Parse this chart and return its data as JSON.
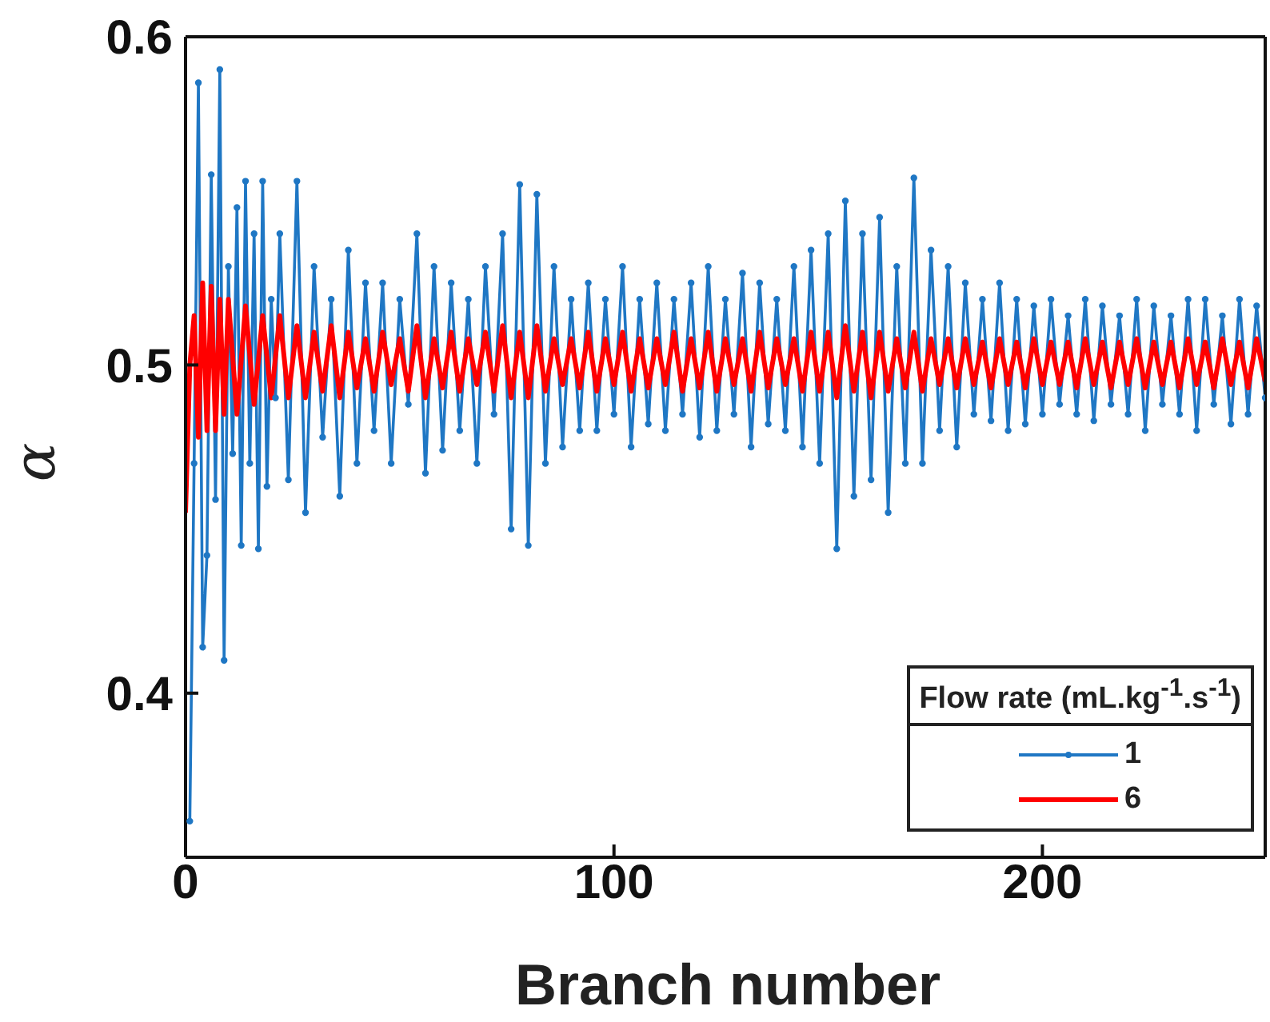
{
  "chart_data": {
    "type": "line",
    "xlabel": "Branch number",
    "ylabel": "α",
    "legend_title": "Flow rate (mL.kg$^{-1}$.s$^{-1}$)",
    "legend": "bottom right",
    "xlim": [
      0,
      252
    ],
    "xticks": [
      0,
      100,
      200
    ],
    "ylim": [
      0.35,
      0.6
    ],
    "yticks": [
      0.4,
      0.5,
      0.6
    ],
    "series": [
      {
        "name": "1",
        "color": "#1f77c4",
        "marker": "circle",
        "x": [
          1,
          2,
          3,
          4,
          5,
          6,
          7,
          8,
          9,
          10,
          11,
          12,
          13,
          14,
          15,
          16,
          17,
          18,
          19,
          20,
          21,
          22,
          24,
          26,
          28,
          30,
          32,
          34,
          36,
          38,
          40,
          42,
          44,
          46,
          48,
          50,
          52,
          54,
          56,
          58,
          60,
          62,
          64,
          66,
          68,
          70,
          72,
          74,
          76,
          78,
          80,
          82,
          84,
          86,
          88,
          90,
          92,
          94,
          96,
          98,
          100,
          102,
          104,
          106,
          108,
          110,
          112,
          114,
          116,
          118,
          120,
          122,
          124,
          126,
          128,
          130,
          132,
          134,
          136,
          138,
          140,
          142,
          144,
          146,
          148,
          150,
          152,
          154,
          156,
          158,
          160,
          162,
          164,
          166,
          168,
          170,
          172,
          174,
          176,
          178,
          180,
          182,
          184,
          186,
          188,
          190,
          192,
          194,
          196,
          198,
          200,
          202,
          204,
          206,
          208,
          210,
          212,
          214,
          216,
          218,
          220,
          222,
          224,
          226,
          228,
          230,
          232,
          234,
          236,
          238,
          240,
          242,
          244,
          246,
          248,
          250,
          252
        ],
        "values": [
          0.361,
          0.47,
          0.586,
          0.414,
          0.442,
          0.558,
          0.459,
          0.59,
          0.41,
          0.53,
          0.473,
          0.548,
          0.445,
          0.556,
          0.47,
          0.54,
          0.444,
          0.556,
          0.463,
          0.52,
          0.49,
          0.54,
          0.465,
          0.556,
          0.455,
          0.53,
          0.478,
          0.52,
          0.46,
          0.535,
          0.47,
          0.525,
          0.48,
          0.525,
          0.47,
          0.52,
          0.488,
          0.54,
          0.467,
          0.53,
          0.474,
          0.525,
          0.48,
          0.52,
          0.47,
          0.53,
          0.485,
          0.54,
          0.45,
          0.555,
          0.445,
          0.552,
          0.47,
          0.53,
          0.475,
          0.52,
          0.48,
          0.525,
          0.48,
          0.52,
          0.485,
          0.53,
          0.475,
          0.52,
          0.482,
          0.525,
          0.48,
          0.52,
          0.485,
          0.525,
          0.478,
          0.53,
          0.48,
          0.52,
          0.485,
          0.528,
          0.475,
          0.525,
          0.482,
          0.52,
          0.48,
          0.53,
          0.475,
          0.535,
          0.47,
          0.54,
          0.444,
          0.55,
          0.46,
          0.54,
          0.465,
          0.545,
          0.455,
          0.53,
          0.47,
          0.557,
          0.47,
          0.535,
          0.48,
          0.53,
          0.475,
          0.525,
          0.485,
          0.52,
          0.483,
          0.525,
          0.48,
          0.52,
          0.482,
          0.518,
          0.485,
          0.52,
          0.488,
          0.515,
          0.485,
          0.52,
          0.483,
          0.518,
          0.488,
          0.515,
          0.485,
          0.52,
          0.48,
          0.518,
          0.488,
          0.515,
          0.485,
          0.52,
          0.48,
          0.52,
          0.488,
          0.515,
          0.482,
          0.52,
          0.485,
          0.518,
          0.49
        ]
      },
      {
        "name": "6",
        "color": "#ff0000",
        "marker": "none",
        "x": [
          0,
          1,
          2,
          3,
          4,
          5,
          6,
          7,
          8,
          9,
          10,
          12,
          14,
          16,
          18,
          20,
          22,
          24,
          26,
          28,
          30,
          32,
          34,
          36,
          38,
          40,
          42,
          44,
          46,
          48,
          50,
          52,
          54,
          56,
          58,
          60,
          62,
          64,
          66,
          68,
          70,
          72,
          74,
          76,
          78,
          80,
          82,
          84,
          86,
          88,
          90,
          92,
          94,
          96,
          98,
          100,
          102,
          104,
          106,
          108,
          110,
          112,
          114,
          116,
          118,
          120,
          122,
          124,
          126,
          128,
          130,
          132,
          134,
          136,
          138,
          140,
          142,
          144,
          146,
          148,
          150,
          152,
          154,
          156,
          158,
          160,
          162,
          164,
          166,
          168,
          170,
          172,
          174,
          176,
          178,
          180,
          182,
          184,
          186,
          188,
          190,
          192,
          194,
          196,
          198,
          200,
          202,
          204,
          206,
          208,
          210,
          212,
          214,
          216,
          218,
          220,
          222,
          224,
          226,
          228,
          230,
          232,
          234,
          236,
          238,
          240,
          242,
          244,
          246,
          248,
          250,
          252
        ],
        "values": [
          0.455,
          0.5,
          0.515,
          0.478,
          0.525,
          0.48,
          0.524,
          0.48,
          0.52,
          0.485,
          0.52,
          0.485,
          0.518,
          0.488,
          0.515,
          0.49,
          0.515,
          0.49,
          0.512,
          0.49,
          0.51,
          0.492,
          0.512,
          0.49,
          0.51,
          0.493,
          0.508,
          0.492,
          0.51,
          0.494,
          0.508,
          0.492,
          0.512,
          0.49,
          0.508,
          0.493,
          0.51,
          0.492,
          0.508,
          0.494,
          0.51,
          0.492,
          0.512,
          0.49,
          0.51,
          0.49,
          0.512,
          0.492,
          0.508,
          0.494,
          0.508,
          0.493,
          0.51,
          0.492,
          0.508,
          0.494,
          0.51,
          0.492,
          0.508,
          0.493,
          0.508,
          0.494,
          0.51,
          0.492,
          0.508,
          0.493,
          0.51,
          0.492,
          0.508,
          0.494,
          0.508,
          0.492,
          0.51,
          0.493,
          0.508,
          0.494,
          0.508,
          0.492,
          0.51,
          0.492,
          0.51,
          0.49,
          0.512,
          0.492,
          0.51,
          0.49,
          0.51,
          0.492,
          0.508,
          0.493,
          0.51,
          0.492,
          0.508,
          0.494,
          0.508,
          0.493,
          0.508,
          0.494,
          0.507,
          0.493,
          0.508,
          0.494,
          0.507,
          0.493,
          0.508,
          0.494,
          0.507,
          0.494,
          0.507,
          0.493,
          0.508,
          0.494,
          0.507,
          0.493,
          0.507,
          0.494,
          0.508,
          0.493,
          0.507,
          0.494,
          0.507,
          0.493,
          0.508,
          0.494,
          0.507,
          0.493,
          0.508,
          0.494,
          0.507,
          0.493,
          0.508,
          0.495
        ]
      }
    ]
  }
}
